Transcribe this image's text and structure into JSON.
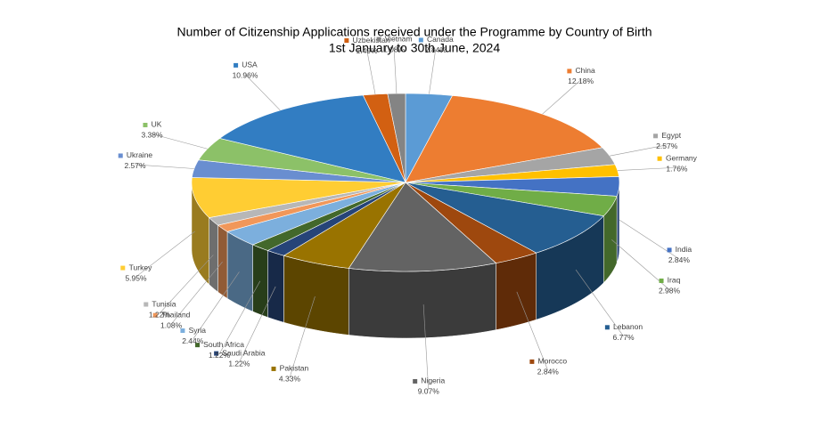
{
  "chart_data": {
    "type": "pie3d",
    "title": "Number of Citizenship Applications received under the Programme by Country of Birth",
    "subtitle": "1st January to 30th June, 2024",
    "categories": [
      "Canada",
      "China",
      "Egypt",
      "Germany",
      "India",
      "Iraq",
      "Lebanon",
      "Morocco",
      "Nigeria",
      "Pakistan",
      "Saudi Arabia",
      "South Africa",
      "Syria",
      "Thailand",
      "Tunisia",
      "Turkey",
      "Ukraine",
      "UK",
      "USA",
      "Uzbekistan",
      "Vietnam"
    ],
    "values": [
      2.84,
      12.18,
      2.57,
      1.76,
      2.84,
      2.98,
      6.77,
      2.84,
      9.07,
      4.33,
      1.22,
      1.22,
      2.44,
      1.08,
      1.22,
      5.95,
      2.57,
      3.38,
      10.96,
      1.49,
      1.08
    ],
    "value_labels": [
      "2.84%",
      "12.18%",
      "2.57%",
      "1.76%",
      "2.84%",
      "2.98%",
      "6.77%",
      "2.84%",
      "9.07%",
      "4.33%",
      "1.22%",
      "1.22%",
      "2.44%",
      "1.08%",
      "1.22%",
      "5.95%",
      "2.57%",
      "3.38%",
      "10.96%",
      "1.49%",
      "1.08%"
    ],
    "colors": [
      "#5b9bd5",
      "#ed7d31",
      "#a5a5a5",
      "#ffc000",
      "#4472c4",
      "#70ad47",
      "#255e91",
      "#9e480e",
      "#636363",
      "#997300",
      "#264478",
      "#43682b",
      "#7cafdd",
      "#f1975a",
      "#b7b7b7",
      "#ffcd33",
      "#698ed0",
      "#8cc168",
      "#327dc2",
      "#d26012",
      "#848484"
    ]
  }
}
